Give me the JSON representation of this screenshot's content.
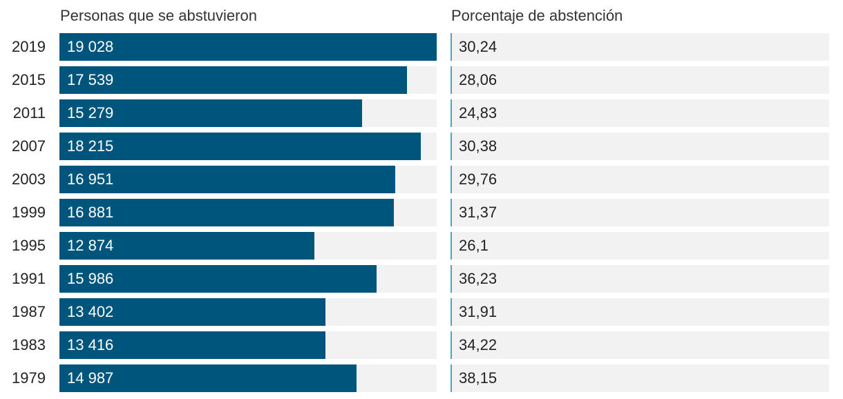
{
  "chart_data": {
    "type": "bar",
    "orientation": "horizontal",
    "categories": [
      "2019",
      "2015",
      "2011",
      "2007",
      "2003",
      "1999",
      "1995",
      "1991",
      "1987",
      "1983",
      "1979"
    ],
    "series": [
      {
        "name": "Personas que se abstuvieron",
        "values": [
          19028,
          17539,
          15279,
          18215,
          16951,
          16881,
          12874,
          15986,
          13402,
          13416,
          14987
        ],
        "labels": [
          "19 028",
          "17 539",
          "15 279",
          "18 215",
          "16 951",
          "16 881",
          "12 874",
          "15 986",
          "13 402",
          "13 416",
          "14 987"
        ],
        "xlim": [
          0,
          19028
        ],
        "color": "#00557c"
      },
      {
        "name": "Porcentaje de abstención",
        "values": [
          30.24,
          28.06,
          24.83,
          30.38,
          29.76,
          31.37,
          26.1,
          36.23,
          31.91,
          34.22,
          38.15
        ],
        "labels": [
          "30,24",
          "28,06",
          "24,83",
          "30,38",
          "29,76",
          "31,37",
          "26,1",
          "36,23",
          "31,91",
          "34,22",
          "38,15"
        ],
        "color": "#3fa3d4"
      }
    ],
    "title": "",
    "xlabel": "",
    "ylabel": "",
    "grid": false,
    "legend": "none"
  },
  "colors": {
    "bar": "#00557c",
    "track": "#f2f2f2",
    "tick": "#3fa3d4"
  }
}
